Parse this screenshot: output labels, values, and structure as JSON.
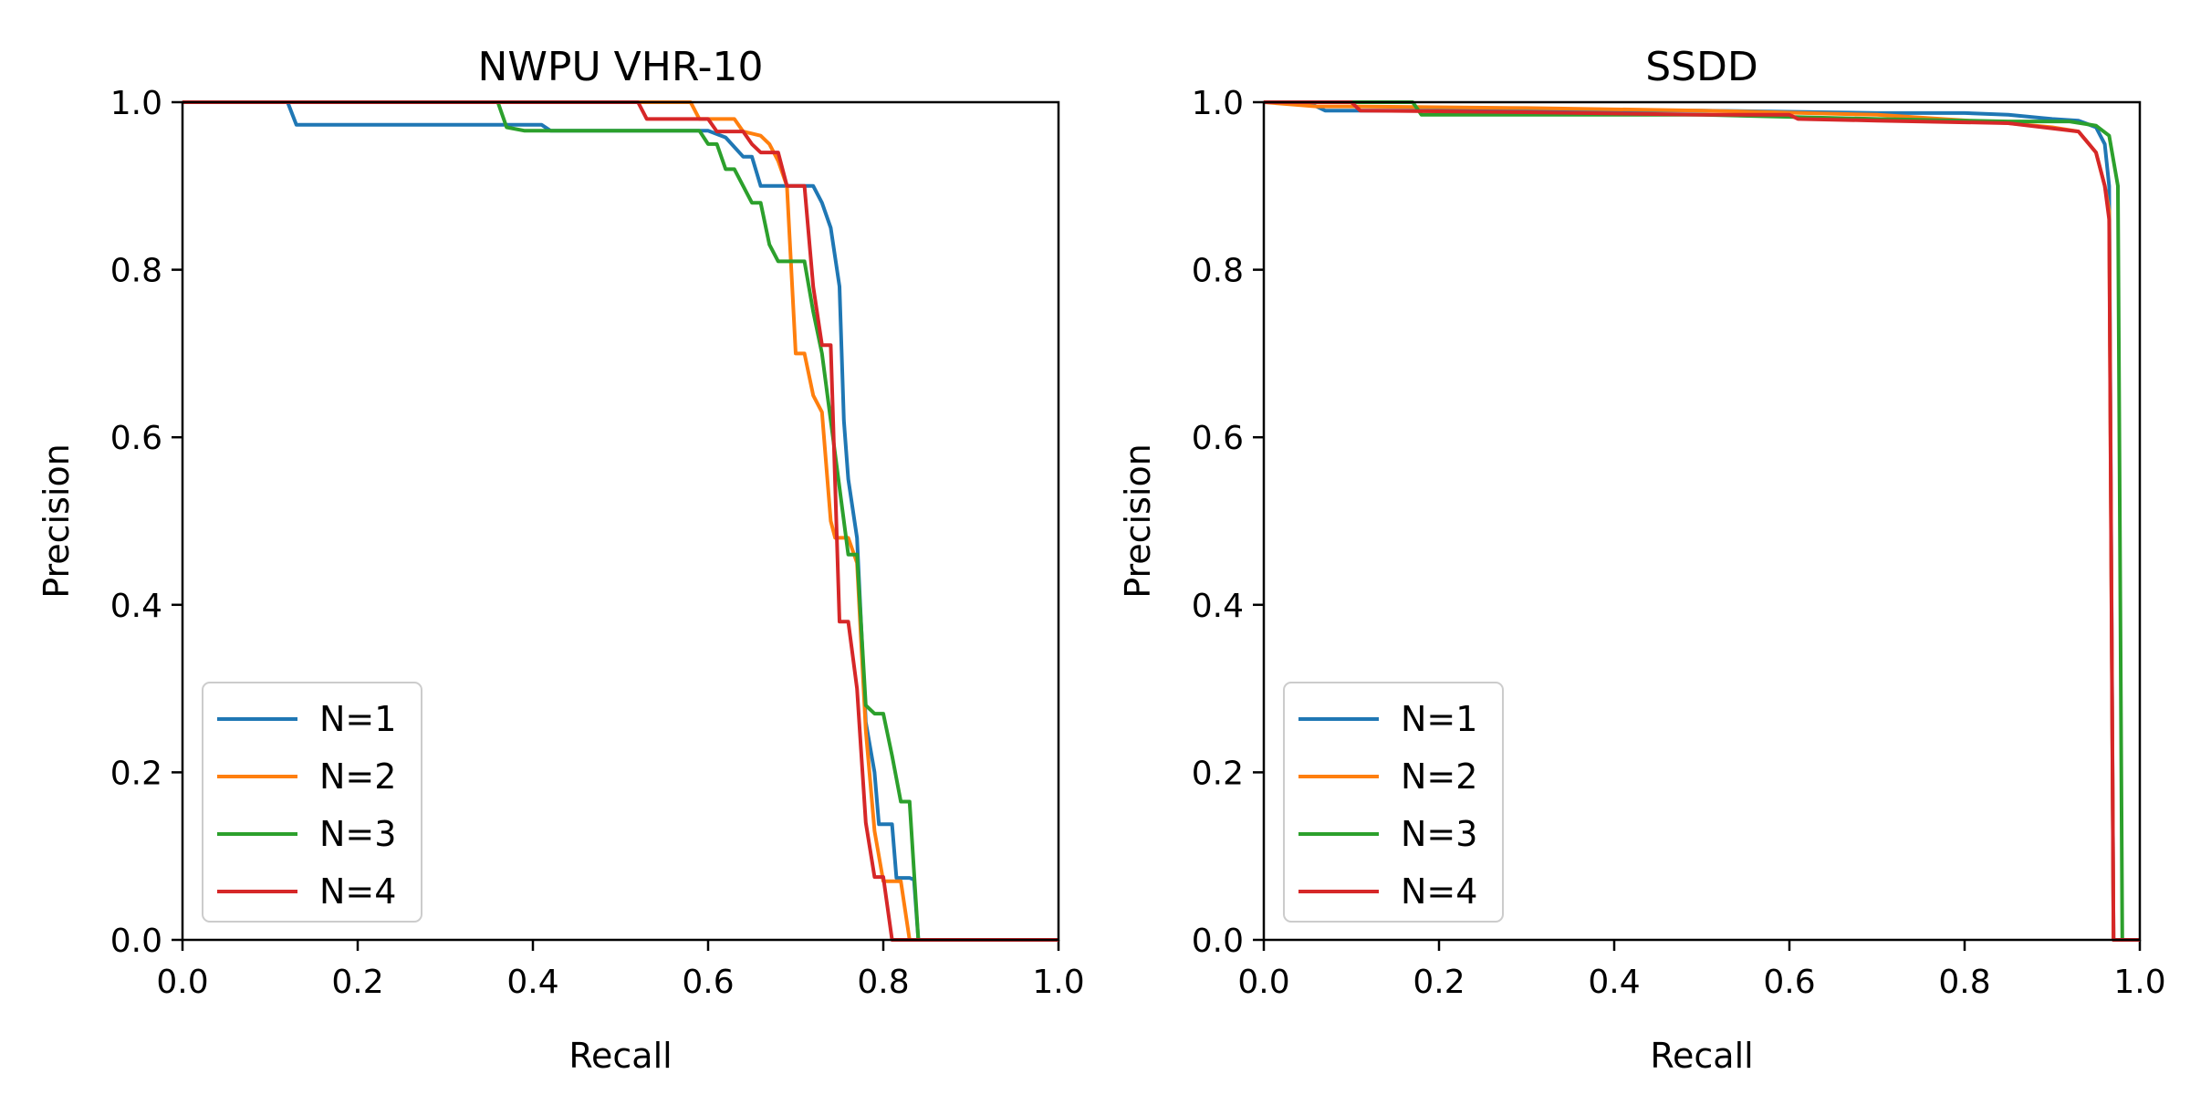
{
  "chart_data": [
    {
      "type": "line",
      "title": "NWPU VHR-10",
      "xlabel": "Recall",
      "ylabel": "Precision",
      "xlim": [
        0.0,
        1.0
      ],
      "ylim": [
        0.0,
        1.0
      ],
      "xticks": [
        "0.0",
        "0.2",
        "0.4",
        "0.6",
        "0.8",
        "1.0"
      ],
      "yticks": [
        "0.0",
        "0.2",
        "0.4",
        "0.6",
        "0.8",
        "1.0"
      ],
      "grid": false,
      "legend_position": "lower-left",
      "series": [
        {
          "name": "N=1",
          "color": "#1f77b4",
          "points": [
            [
              0.0,
              1.0
            ],
            [
              0.12,
              1.0
            ],
            [
              0.13,
              0.973
            ],
            [
              0.41,
              0.973
            ],
            [
              0.42,
              0.966
            ],
            [
              0.6,
              0.966
            ],
            [
              0.62,
              0.958
            ],
            [
              0.64,
              0.935
            ],
            [
              0.65,
              0.935
            ],
            [
              0.66,
              0.9
            ],
            [
              0.72,
              0.9
            ],
            [
              0.73,
              0.88
            ],
            [
              0.74,
              0.85
            ],
            [
              0.75,
              0.78
            ],
            [
              0.755,
              0.62
            ],
            [
              0.76,
              0.55
            ],
            [
              0.77,
              0.48
            ],
            [
              0.78,
              0.26
            ],
            [
              0.79,
              0.2
            ],
            [
              0.795,
              0.138
            ],
            [
              0.81,
              0.138
            ],
            [
              0.815,
              0.074
            ],
            [
              0.83,
              0.074
            ],
            [
              0.835,
              0.072
            ],
            [
              0.84,
              0.0
            ],
            [
              1.0,
              0.0
            ]
          ]
        },
        {
          "name": "N=2",
          "color": "#ff7f0e",
          "points": [
            [
              0.0,
              1.0
            ],
            [
              0.58,
              1.0
            ],
            [
              0.59,
              0.98
            ],
            [
              0.63,
              0.98
            ],
            [
              0.64,
              0.965
            ],
            [
              0.66,
              0.96
            ],
            [
              0.67,
              0.95
            ],
            [
              0.68,
              0.93
            ],
            [
              0.69,
              0.9
            ],
            [
              0.7,
              0.7
            ],
            [
              0.71,
              0.7
            ],
            [
              0.72,
              0.65
            ],
            [
              0.73,
              0.63
            ],
            [
              0.74,
              0.5
            ],
            [
              0.745,
              0.48
            ],
            [
              0.76,
              0.48
            ],
            [
              0.77,
              0.45
            ],
            [
              0.78,
              0.25
            ],
            [
              0.79,
              0.13
            ],
            [
              0.8,
              0.07
            ],
            [
              0.82,
              0.07
            ],
            [
              0.83,
              0.0
            ],
            [
              1.0,
              0.0
            ]
          ]
        },
        {
          "name": "N=3",
          "color": "#2ca02c",
          "points": [
            [
              0.0,
              1.0
            ],
            [
              0.36,
              1.0
            ],
            [
              0.37,
              0.97
            ],
            [
              0.39,
              0.966
            ],
            [
              0.59,
              0.966
            ],
            [
              0.6,
              0.95
            ],
            [
              0.61,
              0.95
            ],
            [
              0.62,
              0.92
            ],
            [
              0.63,
              0.92
            ],
            [
              0.64,
              0.9
            ],
            [
              0.65,
              0.88
            ],
            [
              0.66,
              0.88
            ],
            [
              0.67,
              0.83
            ],
            [
              0.68,
              0.81
            ],
            [
              0.71,
              0.81
            ],
            [
              0.72,
              0.75
            ],
            [
              0.73,
              0.7
            ],
            [
              0.76,
              0.46
            ],
            [
              0.77,
              0.46
            ],
            [
              0.78,
              0.28
            ],
            [
              0.79,
              0.27
            ],
            [
              0.8,
              0.27
            ],
            [
              0.81,
              0.22
            ],
            [
              0.82,
              0.165
            ],
            [
              0.83,
              0.165
            ],
            [
              0.84,
              0.0
            ],
            [
              1.0,
              0.0
            ]
          ]
        },
        {
          "name": "N=4",
          "color": "#d62728",
          "points": [
            [
              0.0,
              1.0
            ],
            [
              0.52,
              1.0
            ],
            [
              0.53,
              0.98
            ],
            [
              0.6,
              0.98
            ],
            [
              0.61,
              0.965
            ],
            [
              0.64,
              0.965
            ],
            [
              0.65,
              0.95
            ],
            [
              0.66,
              0.94
            ],
            [
              0.67,
              0.94
            ],
            [
              0.68,
              0.94
            ],
            [
              0.69,
              0.9
            ],
            [
              0.7,
              0.9
            ],
            [
              0.71,
              0.9
            ],
            [
              0.72,
              0.78
            ],
            [
              0.73,
              0.71
            ],
            [
              0.74,
              0.71
            ],
            [
              0.75,
              0.38
            ],
            [
              0.76,
              0.38
            ],
            [
              0.77,
              0.3
            ],
            [
              0.78,
              0.14
            ],
            [
              0.79,
              0.075
            ],
            [
              0.8,
              0.075
            ],
            [
              0.81,
              0.0
            ],
            [
              1.0,
              0.0
            ]
          ]
        }
      ]
    },
    {
      "type": "line",
      "title": "SSDD",
      "xlabel": "Recall",
      "ylabel": "Precision",
      "xlim": [
        0.0,
        1.0
      ],
      "ylim": [
        0.0,
        1.0
      ],
      "xticks": [
        "0.0",
        "0.2",
        "0.4",
        "0.6",
        "0.8",
        "1.0"
      ],
      "yticks": [
        "0.0",
        "0.2",
        "0.4",
        "0.6",
        "0.8",
        "1.0"
      ],
      "grid": false,
      "legend_position": "lower-left",
      "series": [
        {
          "name": "N=1",
          "color": "#1f77b4",
          "points": [
            [
              0.0,
              1.0
            ],
            [
              0.05,
              1.0
            ],
            [
              0.07,
              0.99
            ],
            [
              0.3,
              0.99
            ],
            [
              0.5,
              0.99
            ],
            [
              0.7,
              0.987
            ],
            [
              0.8,
              0.987
            ],
            [
              0.85,
              0.985
            ],
            [
              0.9,
              0.98
            ],
            [
              0.93,
              0.978
            ],
            [
              0.95,
              0.97
            ],
            [
              0.96,
              0.95
            ],
            [
              0.965,
              0.9
            ],
            [
              0.97,
              0.0
            ],
            [
              1.0,
              0.0
            ]
          ]
        },
        {
          "name": "N=2",
          "color": "#ff7f0e",
          "points": [
            [
              0.0,
              1.0
            ],
            [
              0.06,
              0.995
            ],
            [
              0.1,
              0.995
            ],
            [
              0.3,
              0.993
            ],
            [
              0.5,
              0.99
            ],
            [
              0.7,
              0.985
            ],
            [
              0.85,
              0.975
            ],
            [
              0.9,
              0.97
            ],
            [
              0.93,
              0.965
            ],
            [
              0.95,
              0.94
            ],
            [
              0.96,
              0.9
            ],
            [
              0.965,
              0.87
            ],
            [
              0.97,
              0.0
            ],
            [
              1.0,
              0.0
            ]
          ]
        },
        {
          "name": "N=3",
          "color": "#2ca02c",
          "points": [
            [
              0.0,
              1.0
            ],
            [
              0.17,
              1.0
            ],
            [
              0.18,
              0.985
            ],
            [
              0.3,
              0.985
            ],
            [
              0.5,
              0.985
            ],
            [
              0.7,
              0.98
            ],
            [
              0.85,
              0.977
            ],
            [
              0.92,
              0.977
            ],
            [
              0.95,
              0.972
            ],
            [
              0.965,
              0.96
            ],
            [
              0.975,
              0.9
            ],
            [
              0.98,
              0.0
            ],
            [
              1.0,
              0.0
            ]
          ]
        },
        {
          "name": "N=4",
          "color": "#d62728",
          "points": [
            [
              0.0,
              1.0
            ],
            [
              0.1,
              1.0
            ],
            [
              0.11,
              0.99
            ],
            [
              0.3,
              0.988
            ],
            [
              0.5,
              0.985
            ],
            [
              0.6,
              0.985
            ],
            [
              0.61,
              0.98
            ],
            [
              0.7,
              0.978
            ],
            [
              0.85,
              0.975
            ],
            [
              0.93,
              0.965
            ],
            [
              0.95,
              0.94
            ],
            [
              0.96,
              0.9
            ],
            [
              0.965,
              0.86
            ],
            [
              0.97,
              0.0
            ],
            [
              1.0,
              0.0
            ]
          ]
        }
      ]
    }
  ]
}
